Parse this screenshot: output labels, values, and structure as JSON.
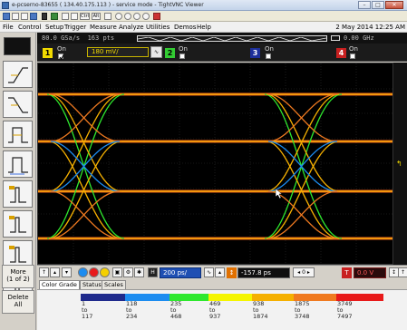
{
  "window": {
    "title": "e-pcserno-83655 ( 134.40.175.113 ) - service mode - TightVNC Viewer",
    "controls": [
      "minimize",
      "maximize",
      "close"
    ]
  },
  "vnc_toolbar": {
    "icons": [
      "new-connection-icon",
      "save-icon",
      "options-icon",
      "info-icon",
      "pause-icon",
      "refresh-icon",
      "ctrl-alt-del-icon",
      "win-key-icon",
      "ctrl-key-label",
      "alt-key-label",
      "transfer-files-icon",
      "zoom-in-icon",
      "zoom-out-icon",
      "zoom-100-icon",
      "zoom-fit-icon",
      "fullscreen-icon"
    ],
    "ctrl_label": "Ctrl",
    "alt_label": "Alt"
  },
  "menubar": {
    "items": [
      "File",
      "Control",
      "Setup",
      "Trigger",
      "Measure",
      "Analyze",
      "Utilities",
      "Demos",
      "Help"
    ],
    "datetime": "2 May 2014 12:25 AM"
  },
  "acquisition": {
    "sample_rate": "80.0 GSa/s",
    "points": "163 pts",
    "frequency": "0.00 GHz"
  },
  "channels": [
    {
      "number": "1",
      "label": "On",
      "scale": "180 mV/",
      "color": "#f1da00",
      "checked": true
    },
    {
      "number": "2",
      "label": "On",
      "color": "#33cc33",
      "checked": false
    },
    {
      "number": "3",
      "label": "On",
      "color": "#3f6fe0",
      "checked": false
    },
    {
      "number": "4",
      "label": "On",
      "color": "#e03030",
      "checked": false
    }
  ],
  "left_panel": {
    "tools": [
      "run-stop-indicator",
      "rising-edge-tool",
      "falling-edge-tool",
      "pulse-width-tool",
      "pulse-width-2-tool",
      "pulse-tool",
      "pulse-2-tool",
      "pulse-3-tool",
      "pulse-4-tool"
    ],
    "more_label": "More",
    "more_sub": "(1 of 2)",
    "delete_label": "Delete",
    "delete_sub": "All"
  },
  "horizontal": {
    "timebase": "200 ps/",
    "delay": "-157.8 ps",
    "trigger_level": "0.0 V"
  },
  "tabs": [
    {
      "label": "Color Grade",
      "active": true
    },
    {
      "label": "Status",
      "active": false
    },
    {
      "label": "Scales",
      "active": false
    }
  ],
  "color_grade": [
    {
      "color": "#1f2a8c",
      "from": "1",
      "to_word": "to",
      "to": "117"
    },
    {
      "color": "#1c8cf0",
      "from": "118",
      "to_word": "to",
      "to": "234"
    },
    {
      "color": "#2ee82e",
      "from": "235",
      "to_word": "to",
      "to": "468"
    },
    {
      "color": "#f5f500",
      "from": "469",
      "to_word": "to",
      "to": "937"
    },
    {
      "color": "#f5b000",
      "from": "938",
      "to_word": "to",
      "to": "1874"
    },
    {
      "color": "#f07a20",
      "from": "1875",
      "to_word": "to",
      "to": "3748"
    },
    {
      "color": "#e81a1a",
      "from": "3749",
      "to_word": "to",
      "to": "7497"
    }
  ]
}
